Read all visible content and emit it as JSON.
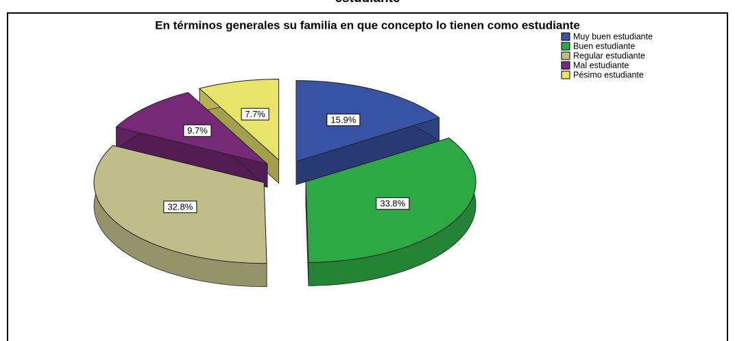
{
  "chart_data": {
    "type": "pie",
    "caption": "estudiante",
    "title": "En términos generales su familia en que concepto lo tienen como estudiante",
    "categories": [
      "Muy buen estudiante",
      "Buen estudiante",
      "Regular estudiante",
      "Mal estudiante",
      "Pésimo estudiante"
    ],
    "values": [
      15.9,
      33.8,
      32.8,
      9.7,
      7.7
    ],
    "value_labels": [
      "15.9%",
      "33.8%",
      "32.8%",
      "9.7%",
      "7.7%"
    ],
    "colors": [
      "#3953a4",
      "#2ea844",
      "#bfbd8a",
      "#772a77",
      "#e8e46a"
    ],
    "legend": "top-right"
  }
}
